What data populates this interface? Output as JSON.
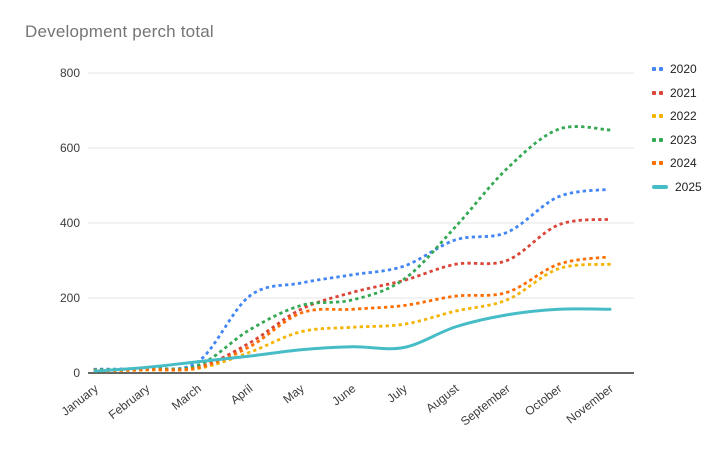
{
  "chart_data": {
    "type": "line",
    "title": "Development perch total",
    "categories": [
      "January",
      "February",
      "March",
      "April",
      "May",
      "June",
      "July",
      "August",
      "September",
      "October",
      "November"
    ],
    "series": [
      {
        "name": "2020",
        "color": "#4285F4",
        "style": "dotted",
        "values": [
          10,
          13,
          30,
          205,
          240,
          262,
          285,
          355,
          375,
          470,
          490
        ]
      },
      {
        "name": "2021",
        "color": "#DB4437",
        "style": "dotted",
        "values": [
          8,
          10,
          15,
          80,
          170,
          215,
          247,
          290,
          300,
          395,
          410
        ]
      },
      {
        "name": "2022",
        "color": "#F4B400",
        "style": "dotted",
        "values": [
          5,
          8,
          12,
          55,
          110,
          122,
          130,
          165,
          195,
          278,
          290
        ]
      },
      {
        "name": "2023",
        "color": "#34A853",
        "style": "dotted",
        "values": [
          8,
          12,
          20,
          115,
          180,
          195,
          250,
          390,
          545,
          650,
          648
        ]
      },
      {
        "name": "2024",
        "color": "#FF6D01",
        "style": "dotted",
        "values": [
          6,
          9,
          14,
          70,
          160,
          170,
          180,
          205,
          215,
          290,
          310
        ]
      },
      {
        "name": "2025",
        "color": "#46BDC6",
        "style": "solid",
        "values": [
          5,
          15,
          30,
          45,
          62,
          70,
          68,
          123,
          155,
          170,
          170
        ]
      }
    ],
    "xlabel": "",
    "ylabel": "",
    "ylim": [
      0,
      800
    ],
    "yticks": [
      0,
      200,
      400,
      600,
      800
    ],
    "grid": true,
    "legend_position": "right",
    "axis_color": "#333333",
    "gridline_color": "#e6e6e6",
    "tick_label_color": "#3c3c3c",
    "title_color": "#757575",
    "background_color": "#ffffff"
  }
}
